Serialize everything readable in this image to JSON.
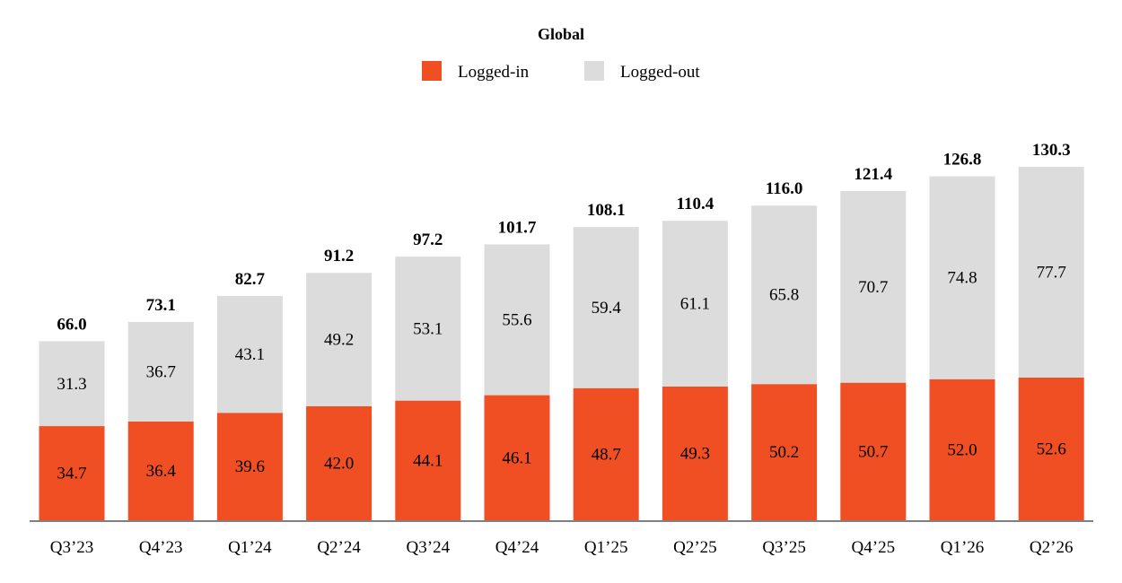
{
  "chart_data": {
    "type": "bar",
    "stacked": true,
    "title": "Global",
    "legend_position": "top-center",
    "grid": false,
    "categories": [
      "Q3’23",
      "Q4’23",
      "Q1’24",
      "Q2’24",
      "Q3’24",
      "Q4’24",
      "Q1’25",
      "Q2’25",
      "Q3’25",
      "Q4’25",
      "Q1’26",
      "Q2’26"
    ],
    "series": [
      {
        "name": "Logged-in",
        "color": "#F04E23",
        "values": [
          34.7,
          36.4,
          39.6,
          42.0,
          44.1,
          46.1,
          48.7,
          49.3,
          50.2,
          50.7,
          52.0,
          52.6
        ],
        "labels": [
          "34.7",
          "36.4",
          "39.6",
          "42.0",
          "44.1",
          "46.1",
          "48.7",
          "49.3",
          "50.2",
          "50.7",
          "52.0",
          "52.6"
        ]
      },
      {
        "name": "Logged-out",
        "color": "#DCDCDC",
        "values": [
          31.3,
          36.7,
          43.1,
          49.2,
          53.1,
          55.6,
          59.4,
          61.1,
          65.8,
          70.7,
          74.8,
          77.7
        ],
        "labels": [
          "31.3",
          "36.7",
          "43.1",
          "49.2",
          "53.1",
          "55.6",
          "59.4",
          "61.1",
          "65.8",
          "70.7",
          "74.8",
          "77.7"
        ]
      }
    ],
    "totals": [
      66.0,
      73.1,
      82.7,
      91.2,
      97.2,
      101.7,
      108.1,
      110.4,
      116.0,
      121.4,
      126.8,
      130.3
    ],
    "total_labels": [
      "66.0",
      "73.1",
      "82.7",
      "91.2",
      "97.2",
      "101.7",
      "108.1",
      "110.4",
      "116.0",
      "121.4",
      "126.8",
      "130.3"
    ],
    "ylim": [
      0,
      130.3
    ],
    "axis_color": "#808080"
  }
}
